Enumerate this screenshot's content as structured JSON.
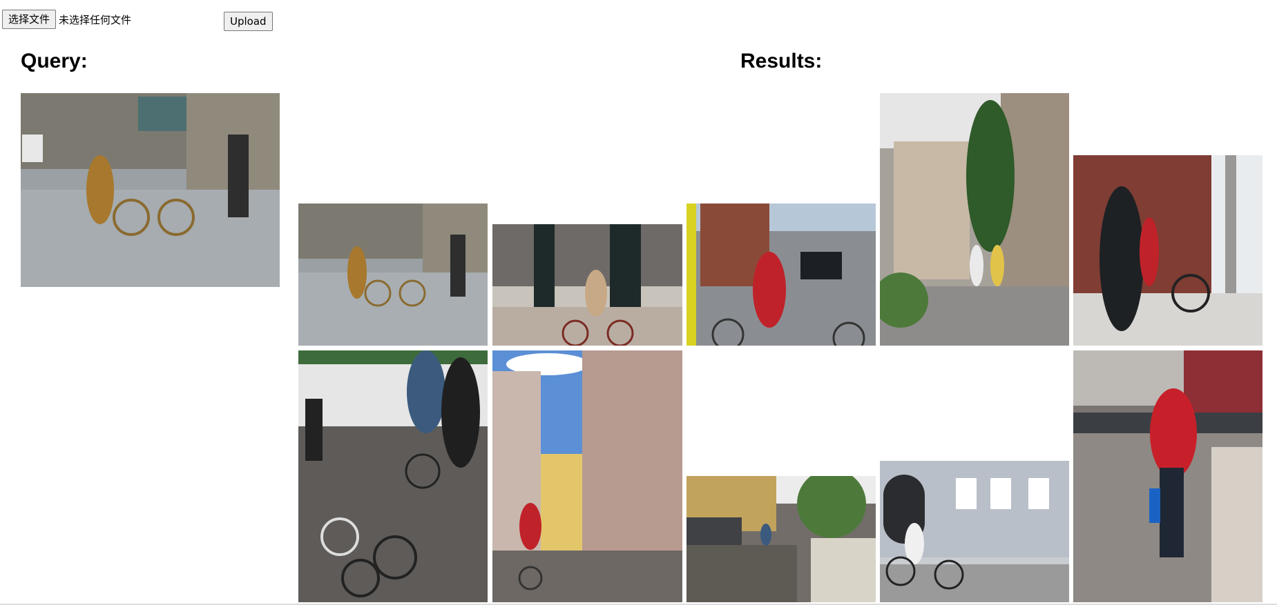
{
  "upload": {
    "choose_file_label": "选择文件",
    "file_status": "未选择任何文件",
    "upload_label": "Upload"
  },
  "sections": {
    "query_title": "Query:",
    "results_title": "Results:"
  },
  "query_image": {
    "subject": "street-statue-bicycle"
  },
  "results": [
    {
      "subject": "street-statue-bicycle"
    },
    {
      "subject": "cyclist-black-bollards"
    },
    {
      "subject": "cyclists-traffic-street"
    },
    {
      "subject": "runners-street"
    },
    {
      "subject": "photographer-bicycle"
    },
    {
      "subject": "folding-bicycles-market"
    },
    {
      "subject": "narrow-alley-cyclist"
    },
    {
      "subject": "cobblestone-street-cars"
    },
    {
      "subject": "cyclist-blue-building"
    },
    {
      "subject": "woman-red-jacket-bridge"
    }
  ]
}
